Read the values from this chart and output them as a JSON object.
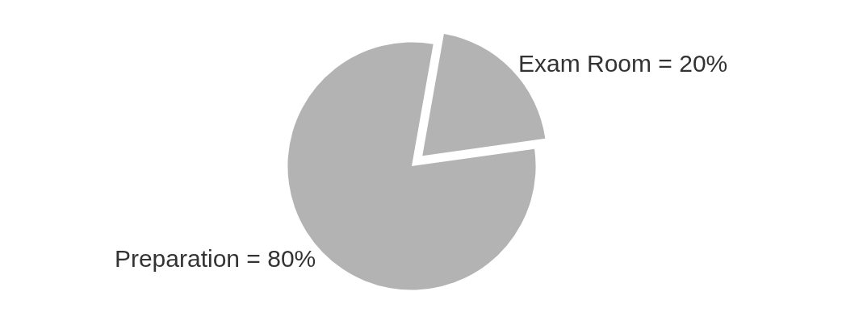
{
  "chart_data": {
    "type": "pie",
    "categories": [
      "Exam Room = 20%",
      "Preparation = 80%"
    ],
    "values": [
      20,
      80
    ],
    "colors": [
      "#b3b3b3",
      "#b3b3b3"
    ],
    "legend": false
  }
}
